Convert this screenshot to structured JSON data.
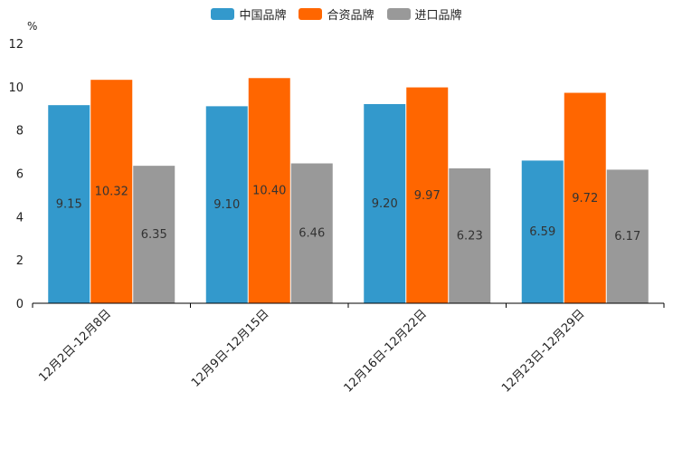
{
  "chart_data": {
    "type": "bar",
    "unit": "%",
    "categories": [
      "12月2日-12月8日",
      "12月9日-12月15日",
      "12月16日-12月22日",
      "12月23日-12月29日"
    ],
    "series": [
      {
        "name": "中国品牌",
        "color": "#3399cc",
        "values": [
          9.15,
          9.1,
          9.2,
          6.59
        ],
        "labels": [
          "9.15",
          "9.10",
          "9.20",
          "6.59"
        ]
      },
      {
        "name": "合资品牌",
        "color": "#ff6600",
        "values": [
          10.32,
          10.4,
          9.97,
          9.72
        ],
        "labels": [
          "10.32",
          "10.40",
          "9.97",
          "9.72"
        ]
      },
      {
        "name": "进口品牌",
        "color": "#999999",
        "values": [
          6.35,
          6.46,
          6.23,
          6.17
        ],
        "labels": [
          "6.35",
          "6.46",
          "6.23",
          "6.17"
        ]
      }
    ],
    "ylim": [
      0,
      12
    ],
    "yticks": [
      "0",
      "2",
      "4",
      "6",
      "8",
      "10",
      "12"
    ],
    "legend_position": "top-center"
  }
}
